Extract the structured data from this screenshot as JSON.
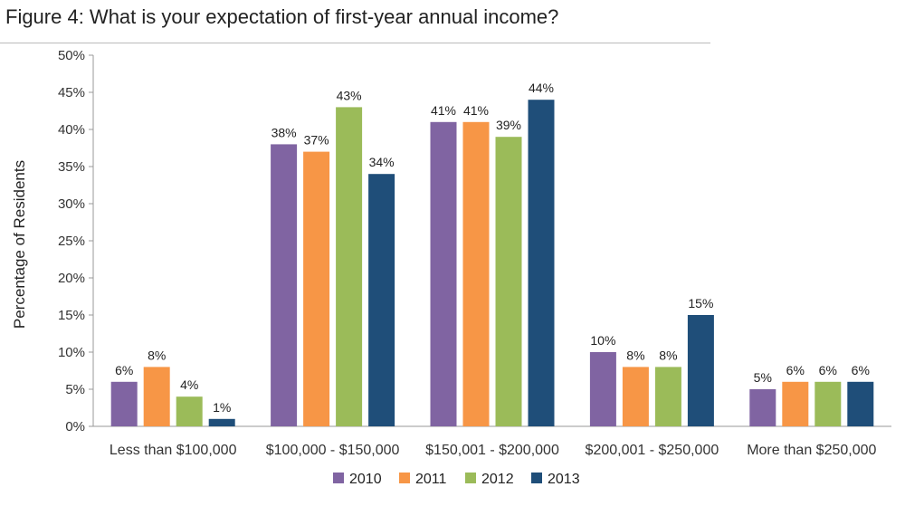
{
  "title": "Figure 4: What is your expectation of first-year annual income?",
  "chart_data": {
    "type": "bar",
    "title": "Figure 4: What is your expectation of first-year annual income?",
    "xlabel": "",
    "ylabel": "Percentage of Residents",
    "ylim": [
      0,
      50
    ],
    "yticks": [
      "0%",
      "5%",
      "10%",
      "15%",
      "20%",
      "25%",
      "30%",
      "35%",
      "40%",
      "45%",
      "50%"
    ],
    "categories": [
      "Less than $100,000",
      "$100,000 - $150,000",
      "$150,001 - $200,000",
      "$200,001 - $250,000",
      "More than $250,000"
    ],
    "series": [
      {
        "name": "2010",
        "color": "#8064a2",
        "values": [
          6,
          38,
          41,
          10,
          5
        ],
        "labels": [
          "6%",
          "38%",
          "41%",
          "10%",
          "5%"
        ]
      },
      {
        "name": "2011",
        "color": "#f79646",
        "values": [
          8,
          37,
          41,
          8,
          6
        ],
        "labels": [
          "8%",
          "37%",
          "41%",
          "8%",
          "6%"
        ]
      },
      {
        "name": "2012",
        "color": "#9bbb59",
        "values": [
          4,
          43,
          39,
          8,
          6
        ],
        "labels": [
          "4%",
          "43%",
          "39%",
          "8%",
          "6%"
        ]
      },
      {
        "name": "2013",
        "color": "#1f4e79",
        "values": [
          1,
          34,
          44,
          15,
          6
        ],
        "labels": [
          "1%",
          "34%",
          "44%",
          "15%",
          "6%"
        ]
      }
    ],
    "grid": false,
    "legend_position": "bottom"
  }
}
